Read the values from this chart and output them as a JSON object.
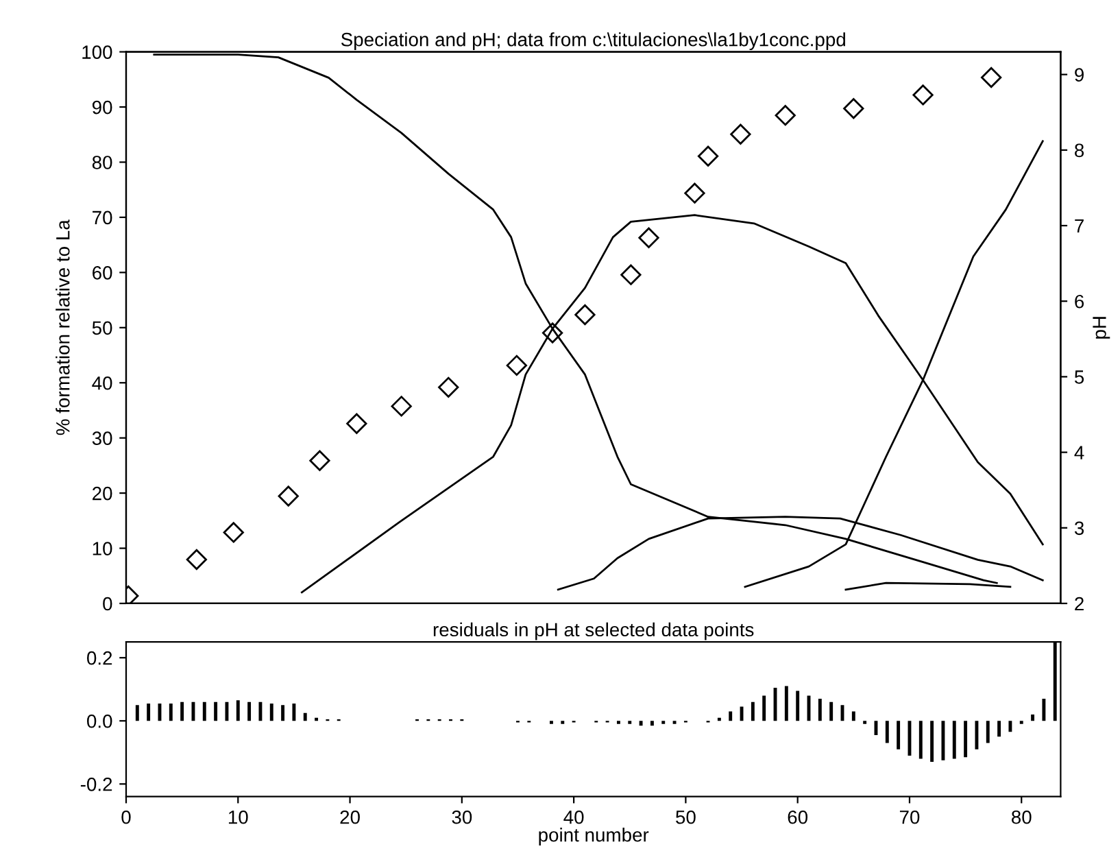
{
  "chart_data": [
    {
      "type": "line",
      "title": "Speciation and pH; data from c:\\titulaciones\\la1by1conc.ppd",
      "ylabel": "% formation relative to La",
      "y2label": "pH",
      "xlim": [
        0,
        83.5
      ],
      "ylim": [
        0,
        100
      ],
      "yticks": [
        0,
        10,
        20,
        30,
        40,
        50,
        60,
        70,
        80,
        90,
        100
      ],
      "y2lim": [
        2,
        9.3
      ],
      "y2ticks": [
        2,
        3,
        4,
        5,
        6,
        7,
        8,
        9
      ],
      "tick_labels": "y",
      "grid": false,
      "series": [
        {
          "color": "#000000",
          "x": [
            2.5,
            10,
            13.6,
            18.1,
            20.6,
            24.6,
            28.8,
            32.8,
            34.4,
            35.7,
            38.1,
            41,
            42.3,
            43.9,
            45.1,
            52,
            58.9,
            64.3,
            71.2,
            76.6,
            77.8
          ],
          "values": [
            99.5,
            99.5,
            99,
            95.3,
            91.3,
            85.3,
            77.9,
            71.4,
            66.4,
            58,
            49.8,
            41.5,
            34.8,
            26.6,
            21.6,
            15.7,
            14.2,
            11.7,
            7.5,
            4.2,
            3.7
          ]
        },
        {
          "color": "#000000",
          "x": [
            15.7,
            24.6,
            32.8,
            34.4,
            35.7,
            38.1,
            41,
            43.5,
            45.1,
            50.8,
            56.1,
            61,
            64.3,
            67.2,
            71.2,
            76.1,
            79,
            81.9
          ],
          "values": [
            2,
            15,
            26.6,
            32.3,
            41.5,
            49.8,
            57.2,
            66.4,
            69.2,
            70.4,
            68.9,
            64.7,
            61.7,
            52.2,
            40.5,
            25.6,
            19.9,
            10.7
          ]
        },
        {
          "color": "#000000",
          "x": [
            38.6,
            41.8,
            43.9,
            46.7,
            52,
            58.9,
            63.8,
            69.2,
            76.1,
            79,
            81.9
          ],
          "values": [
            2.5,
            4.5,
            8.2,
            11.7,
            15.4,
            15.7,
            15.4,
            12.4,
            7.9,
            6.7,
            4.2
          ]
        },
        {
          "color": "#000000",
          "x": [
            55.3,
            61,
            64.3,
            67.9,
            71.2,
            75.7,
            78.6,
            81.9
          ],
          "values": [
            3,
            6.7,
            10.7,
            26.6,
            40.5,
            62.9,
            71.4,
            83.8
          ]
        },
        {
          "color": "#000000",
          "x": [
            64.3,
            67.9,
            75.4,
            79
          ],
          "values": [
            2.5,
            3.7,
            3.5,
            3
          ]
        },
        {
          "type": "scatter",
          "axis": "y2",
          "marker": "diamond",
          "color": "#000000",
          "x": [
            0.2,
            6.3,
            9.6,
            14.5,
            17.3,
            20.6,
            24.6,
            28.8,
            34.9,
            38.1,
            41,
            45.1,
            46.7,
            50.8,
            52,
            54.9,
            58.9,
            65,
            71.2,
            77.3
          ],
          "values": [
            2.1,
            2.58,
            2.94,
            3.42,
            3.89,
            4.38,
            4.61,
            4.86,
            5.15,
            5.58,
            5.82,
            6.35,
            6.84,
            7.43,
            7.92,
            8.21,
            8.46,
            8.55,
            8.73,
            8.96
          ]
        }
      ]
    },
    {
      "type": "bar",
      "title": "residuals in pH at selected data points",
      "xlabel": "point number",
      "xlim": [
        0,
        83.5
      ],
      "xticks": [
        0,
        10,
        20,
        30,
        40,
        50,
        60,
        70,
        80
      ],
      "ylim": [
        -0.24,
        0.25
      ],
      "yticks": [
        {
          "value": -0.2,
          "label": "-0.2"
        },
        {
          "value": 0,
          "label": "0.0"
        },
        {
          "value": 0.2,
          "label": "0.2"
        }
      ],
      "grid": false,
      "color": "#000000",
      "x": [
        1,
        2,
        3,
        4,
        5,
        6,
        7,
        8,
        9,
        10,
        11,
        12,
        13,
        14,
        15,
        16,
        17,
        18,
        19,
        26,
        27,
        28,
        29,
        30,
        35,
        36,
        38,
        39,
        40,
        42,
        43,
        44,
        45,
        46,
        47,
        48,
        49,
        50,
        52,
        53,
        54,
        55,
        56,
        57,
        58,
        59,
        60,
        61,
        62,
        63,
        64,
        65,
        66,
        67,
        68,
        69,
        70,
        71,
        72,
        73,
        74,
        75,
        76,
        77,
        78,
        79,
        80,
        81,
        82,
        83
      ],
      "values": [
        0.05,
        0.055,
        0.055,
        0.055,
        0.06,
        0.06,
        0.06,
        0.06,
        0.06,
        0.065,
        0.06,
        0.06,
        0.055,
        0.05,
        0.055,
        0.025,
        0.01,
        0.005,
        0.005,
        0.005,
        0.005,
        0.005,
        0.005,
        0.005,
        -0.005,
        -0.005,
        -0.01,
        -0.01,
        -0.005,
        -0.005,
        -0.005,
        -0.01,
        -0.01,
        -0.015,
        -0.015,
        -0.01,
        -0.01,
        -0.005,
        -0.005,
        0.01,
        0.03,
        0.045,
        0.06,
        0.08,
        0.105,
        0.11,
        0.095,
        0.08,
        0.07,
        0.06,
        0.05,
        0.03,
        -0.01,
        -0.045,
        -0.07,
        -0.09,
        -0.11,
        -0.12,
        -0.13,
        -0.125,
        -0.12,
        -0.115,
        -0.09,
        -0.07,
        -0.05,
        -0.035,
        -0.01,
        0.02,
        0.07,
        0.25
      ]
    }
  ]
}
